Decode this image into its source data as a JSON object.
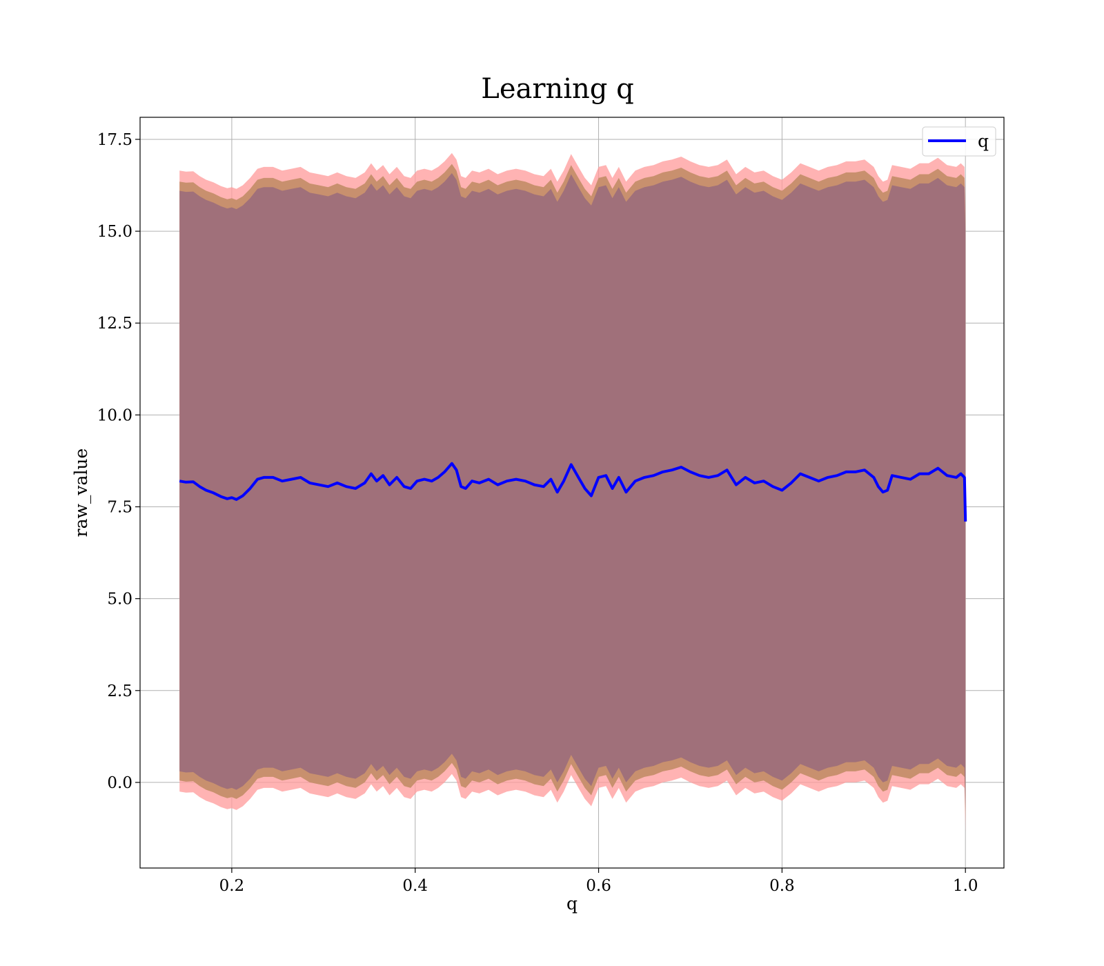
{
  "chart_data": {
    "type": "line",
    "title": "Learning q",
    "xlabel": "q",
    "ylabel": "raw_value",
    "xlim": [
      0.1,
      1.042
    ],
    "ylim": [
      -2.33,
      18.1
    ],
    "xticks": [
      0.2,
      0.4,
      0.6,
      0.8,
      1.0
    ],
    "xtick_labels": [
      "0.2",
      "0.4",
      "0.6",
      "0.8",
      "1.0"
    ],
    "yticks": [
      0.0,
      2.5,
      5.0,
      7.5,
      10.0,
      12.5,
      15.0,
      17.5
    ],
    "ytick_labels": [
      "0.0",
      "2.5",
      "5.0",
      "7.5",
      "10.0",
      "12.5",
      "15.0",
      "17.5"
    ],
    "grid": true,
    "legend_position": "top-right",
    "colors": {
      "line": "#0000ff",
      "band_outer": "#ff9999",
      "band_mid": "#c8906e",
      "band_inner": "#a0707a"
    },
    "bands": [
      {
        "offset": 8.45,
        "color": "#ff9999"
      },
      {
        "offset": 8.15,
        "color": "#c8906e"
      },
      {
        "offset": 7.9,
        "color": "#a0707a"
      }
    ],
    "series": [
      {
        "name": "q",
        "x": [
          0.143,
          0.15,
          0.158,
          0.165,
          0.172,
          0.18,
          0.188,
          0.195,
          0.2,
          0.205,
          0.212,
          0.22,
          0.228,
          0.235,
          0.245,
          0.255,
          0.265,
          0.275,
          0.285,
          0.295,
          0.305,
          0.315,
          0.325,
          0.335,
          0.345,
          0.352,
          0.358,
          0.365,
          0.372,
          0.38,
          0.388,
          0.395,
          0.402,
          0.41,
          0.418,
          0.425,
          0.432,
          0.44,
          0.445,
          0.45,
          0.455,
          0.462,
          0.47,
          0.48,
          0.49,
          0.5,
          0.51,
          0.52,
          0.53,
          0.54,
          0.548,
          0.555,
          0.562,
          0.57,
          0.578,
          0.585,
          0.592,
          0.6,
          0.608,
          0.615,
          0.622,
          0.63,
          0.64,
          0.65,
          0.66,
          0.67,
          0.68,
          0.69,
          0.7,
          0.71,
          0.72,
          0.73,
          0.74,
          0.75,
          0.76,
          0.77,
          0.78,
          0.79,
          0.8,
          0.81,
          0.82,
          0.83,
          0.84,
          0.85,
          0.86,
          0.87,
          0.88,
          0.89,
          0.9,
          0.905,
          0.91,
          0.915,
          0.92,
          0.93,
          0.94,
          0.95,
          0.96,
          0.97,
          0.98,
          0.99,
          0.995,
          0.999,
          1.0
        ],
        "y": [
          8.2,
          8.17,
          8.18,
          8.05,
          7.95,
          7.88,
          7.78,
          7.72,
          7.75,
          7.7,
          7.8,
          8.0,
          8.25,
          8.3,
          8.3,
          8.2,
          8.25,
          8.3,
          8.15,
          8.1,
          8.05,
          8.15,
          8.05,
          8.0,
          8.15,
          8.4,
          8.2,
          8.35,
          8.1,
          8.3,
          8.05,
          8.0,
          8.2,
          8.25,
          8.2,
          8.3,
          8.45,
          8.68,
          8.5,
          8.05,
          8.0,
          8.2,
          8.15,
          8.25,
          8.1,
          8.2,
          8.25,
          8.2,
          8.1,
          8.05,
          8.25,
          7.9,
          8.2,
          8.65,
          8.3,
          8.0,
          7.8,
          8.3,
          8.35,
          8.0,
          8.3,
          7.9,
          8.2,
          8.3,
          8.35,
          8.45,
          8.5,
          8.58,
          8.45,
          8.35,
          8.3,
          8.35,
          8.5,
          8.1,
          8.3,
          8.15,
          8.2,
          8.05,
          7.95,
          8.15,
          8.4,
          8.3,
          8.2,
          8.3,
          8.35,
          8.45,
          8.45,
          8.5,
          8.3,
          8.05,
          7.9,
          7.95,
          8.35,
          8.3,
          8.25,
          8.4,
          8.4,
          8.55,
          8.35,
          8.3,
          8.4,
          8.3,
          7.1
        ]
      }
    ]
  }
}
